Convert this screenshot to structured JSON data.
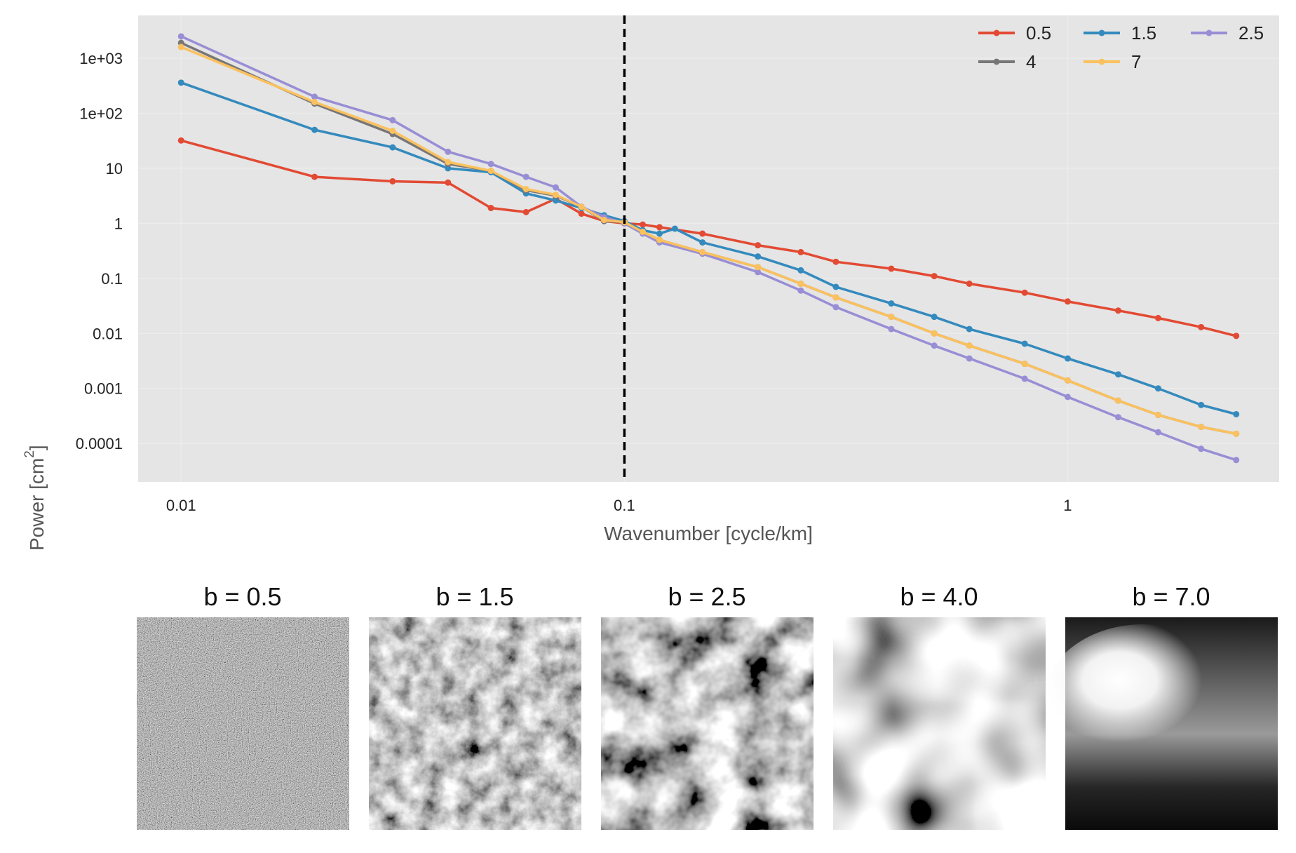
{
  "chart_data": [
    {
      "type": "line",
      "title": "",
      "xlabel": "Wavenumber [cycle/km]",
      "ylabel": "Power [cm",
      "ylabel_superscript": "2",
      "ylabel_suffix": "]",
      "x_scale": "log",
      "y_scale": "log",
      "xlim": [
        0.008,
        3.0
      ],
      "ylim": [
        2e-05,
        6000
      ],
      "x_ticks": [
        {
          "value": 0.01,
          "label": "0.01"
        },
        {
          "value": 0.1,
          "label": "0.1"
        },
        {
          "value": 1,
          "label": "1"
        }
      ],
      "y_ticks": [
        {
          "value": 1000,
          "label": "1e+03"
        },
        {
          "value": 100,
          "label": "1e+02"
        },
        {
          "value": 10,
          "label": "10"
        },
        {
          "value": 1,
          "label": "1"
        },
        {
          "value": 0.1,
          "label": "0.1"
        },
        {
          "value": 0.01,
          "label": "0.01"
        },
        {
          "value": 0.001,
          "label": "0.001"
        },
        {
          "value": 0.0001,
          "label": "0.0001"
        }
      ],
      "grid": true,
      "background": "#e5e5e5",
      "reference_line": {
        "x": 0.1,
        "style": "dashed",
        "color": "#000000"
      },
      "legend_position": "top-right",
      "legend_columns": 3,
      "series": [
        {
          "name": "0.5",
          "color": "#e24a33",
          "x": [
            0.01,
            0.02,
            0.03,
            0.04,
            0.05,
            0.06,
            0.07,
            0.08,
            0.09,
            0.1,
            0.11,
            0.12,
            0.15,
            0.2,
            0.25,
            0.3,
            0.4,
            0.5,
            0.6,
            0.8,
            1.0,
            1.3,
            1.6,
            2.0,
            2.4
          ],
          "y": [
            32,
            7,
            5.8,
            5.5,
            1.9,
            1.6,
            2.8,
            1.5,
            1.1,
            1.0,
            0.95,
            0.85,
            0.65,
            0.4,
            0.3,
            0.2,
            0.15,
            0.11,
            0.08,
            0.055,
            0.038,
            0.026,
            0.019,
            0.013,
            0.009
          ]
        },
        {
          "name": "1.5",
          "color": "#348abd",
          "x": [
            0.01,
            0.02,
            0.03,
            0.04,
            0.05,
            0.06,
            0.07,
            0.08,
            0.09,
            0.1,
            0.11,
            0.12,
            0.13,
            0.15,
            0.2,
            0.25,
            0.3,
            0.4,
            0.5,
            0.6,
            0.8,
            1.0,
            1.3,
            1.6,
            2.0,
            2.4
          ],
          "y": [
            360,
            50,
            24,
            10,
            8.5,
            3.5,
            2.6,
            1.9,
            1.4,
            1.1,
            0.75,
            0.65,
            0.8,
            0.45,
            0.25,
            0.14,
            0.07,
            0.035,
            0.02,
            0.012,
            0.0065,
            0.0035,
            0.0018,
            0.001,
            0.0005,
            0.00034
          ]
        },
        {
          "name": "2.5",
          "color": "#988ed5",
          "x": [
            0.01,
            0.02,
            0.03,
            0.04,
            0.05,
            0.06,
            0.07,
            0.08,
            0.09,
            0.1,
            0.11,
            0.12,
            0.15,
            0.2,
            0.25,
            0.3,
            0.4,
            0.5,
            0.6,
            0.8,
            1.0,
            1.3,
            1.6,
            2.0,
            2.4
          ],
          "y": [
            2500,
            200,
            75,
            20,
            12,
            7,
            4.5,
            2.0,
            1.3,
            1.0,
            0.65,
            0.45,
            0.28,
            0.13,
            0.06,
            0.03,
            0.012,
            0.006,
            0.0035,
            0.0015,
            0.0007,
            0.0003,
            0.00016,
            8e-05,
            5e-05
          ]
        },
        {
          "name": "4",
          "color": "#777777",
          "x": [
            0.01,
            0.02,
            0.03,
            0.04,
            0.05,
            0.06,
            0.07,
            0.08,
            0.09,
            0.1,
            0.11,
            0.12,
            0.15,
            0.2,
            0.25,
            0.3,
            0.4,
            0.5,
            0.6,
            0.8,
            1.0,
            1.3,
            1.6,
            2.0,
            2.4
          ],
          "y": [
            1900,
            150,
            42,
            12,
            9,
            4.0,
            3.2,
            2.0,
            1.1,
            1.05,
            0.7,
            0.5,
            0.3,
            0.16,
            0.08,
            0.045,
            0.02,
            0.01,
            0.006,
            0.0028,
            0.0014,
            0.0006,
            0.00033,
            0.0002,
            0.00015
          ]
        },
        {
          "name": "7",
          "color": "#fbc15e",
          "x": [
            0.01,
            0.02,
            0.03,
            0.04,
            0.05,
            0.06,
            0.07,
            0.08,
            0.09,
            0.1,
            0.11,
            0.12,
            0.15,
            0.2,
            0.25,
            0.3,
            0.4,
            0.5,
            0.6,
            0.8,
            1.0,
            1.3,
            1.6,
            2.0,
            2.4
          ],
          "y": [
            1600,
            160,
            48,
            13,
            9,
            4.2,
            3.3,
            2.0,
            1.15,
            1.05,
            0.7,
            0.5,
            0.3,
            0.16,
            0.08,
            0.045,
            0.02,
            0.01,
            0.006,
            0.0028,
            0.0014,
            0.0006,
            0.00033,
            0.0002,
            0.00015
          ]
        }
      ]
    },
    {
      "type": "image-panels",
      "panels": [
        {
          "title": "b = 0.5"
        },
        {
          "title": "b = 1.5"
        },
        {
          "title": "b = 2.5"
        },
        {
          "title": "b = 4.0"
        },
        {
          "title": "b = 7.0"
        }
      ]
    }
  ]
}
